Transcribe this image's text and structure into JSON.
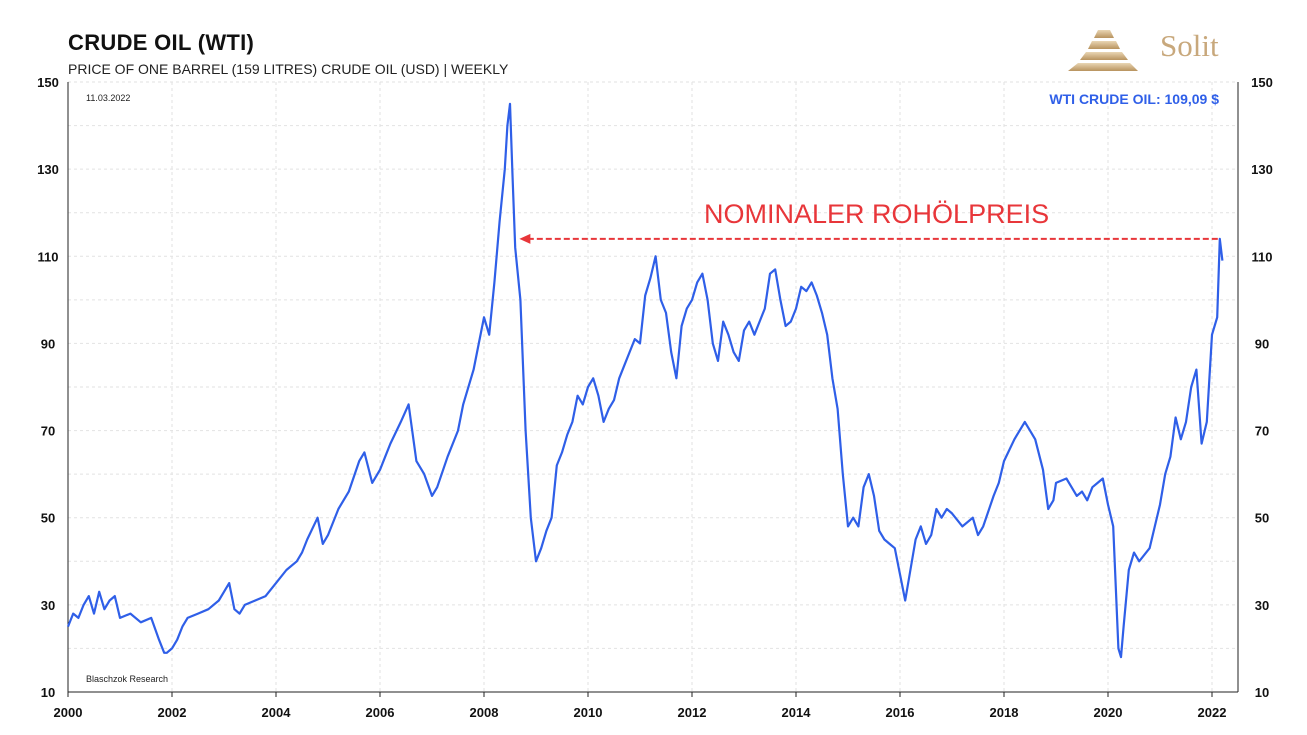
{
  "header": {
    "title": "CRUDE OIL (WTI)",
    "subtitle": "PRICE OF ONE BARREL (159 LITRES) CRUDE OIL (USD) | WEEKLY",
    "brand": "Solit"
  },
  "chart_data": {
    "type": "line",
    "title": "CRUDE OIL (WTI)",
    "subtitle": "PRICE OF ONE BARREL (159 LITRES) CRUDE OIL (USD) | WEEKLY",
    "date_label": "11.03.2022",
    "source_label": "Blaschzok Research",
    "current_value_label": "WTI CRUDE OIL: 109,09 $",
    "annotation": "NOMINALER ROHÖLPREIS",
    "annotation_level": 114,
    "xlim": [
      2000,
      2022.5
    ],
    "ylim": [
      10,
      150
    ],
    "x_ticks": [
      2000,
      2002,
      2004,
      2006,
      2008,
      2010,
      2012,
      2014,
      2016,
      2018,
      2020,
      2022
    ],
    "y_ticks": [
      10,
      30,
      50,
      70,
      90,
      110,
      130,
      150
    ],
    "grid": true,
    "line_color": "#2f5fe8",
    "annotation_color": "#e8363a",
    "series": [
      {
        "name": "WTI CRUDE OIL",
        "x": [
          2000.0,
          2000.1,
          2000.2,
          2000.3,
          2000.4,
          2000.5,
          2000.6,
          2000.7,
          2000.8,
          2000.9,
          2001.0,
          2001.2,
          2001.4,
          2001.6,
          2001.75,
          2001.85,
          2001.9,
          2002.0,
          2002.1,
          2002.2,
          2002.3,
          2002.5,
          2002.7,
          2002.9,
          2003.0,
          2003.1,
          2003.2,
          2003.3,
          2003.4,
          2003.6,
          2003.8,
          2004.0,
          2004.2,
          2004.4,
          2004.5,
          2004.6,
          2004.8,
          2004.9,
          2005.0,
          2005.2,
          2005.4,
          2005.6,
          2005.7,
          2005.85,
          2006.0,
          2006.2,
          2006.4,
          2006.55,
          2006.7,
          2006.85,
          2007.0,
          2007.1,
          2007.3,
          2007.5,
          2007.6,
          2007.8,
          2007.9,
          2008.0,
          2008.1,
          2008.2,
          2008.3,
          2008.4,
          2008.45,
          2008.5,
          2008.55,
          2008.6,
          2008.7,
          2008.8,
          2008.9,
          2009.0,
          2009.1,
          2009.2,
          2009.3,
          2009.4,
          2009.5,
          2009.6,
          2009.7,
          2009.8,
          2009.9,
          2010.0,
          2010.1,
          2010.2,
          2010.3,
          2010.4,
          2010.5,
          2010.6,
          2010.7,
          2010.8,
          2010.9,
          2011.0,
          2011.1,
          2011.2,
          2011.3,
          2011.4,
          2011.5,
          2011.6,
          2011.7,
          2011.8,
          2011.9,
          2012.0,
          2012.1,
          2012.2,
          2012.3,
          2012.4,
          2012.5,
          2012.6,
          2012.7,
          2012.8,
          2012.9,
          2013.0,
          2013.1,
          2013.2,
          2013.3,
          2013.4,
          2013.5,
          2013.6,
          2013.7,
          2013.8,
          2013.9,
          2014.0,
          2014.1,
          2014.2,
          2014.3,
          2014.4,
          2014.5,
          2014.6,
          2014.7,
          2014.8,
          2014.9,
          2015.0,
          2015.1,
          2015.2,
          2015.3,
          2015.4,
          2015.5,
          2015.6,
          2015.7,
          2015.8,
          2015.9,
          2016.0,
          2016.1,
          2016.2,
          2016.3,
          2016.4,
          2016.5,
          2016.6,
          2016.7,
          2016.8,
          2016.9,
          2017.0,
          2017.2,
          2017.4,
          2017.5,
          2017.6,
          2017.8,
          2017.9,
          2018.0,
          2018.2,
          2018.4,
          2018.5,
          2018.6,
          2018.75,
          2018.85,
          2018.95,
          2019.0,
          2019.2,
          2019.3,
          2019.4,
          2019.5,
          2019.6,
          2019.7,
          2019.8,
          2019.9,
          2020.0,
          2020.1,
          2020.2,
          2020.25,
          2020.3,
          2020.4,
          2020.5,
          2020.6,
          2020.8,
          2020.9,
          2021.0,
          2021.1,
          2021.2,
          2021.3,
          2021.4,
          2021.5,
          2021.6,
          2021.7,
          2021.8,
          2021.9,
          2022.0,
          2022.1,
          2022.15,
          2022.2
        ],
        "values": [
          25,
          28,
          27,
          30,
          32,
          28,
          33,
          29,
          31,
          32,
          27,
          28,
          26,
          27,
          22,
          19,
          19,
          20,
          22,
          25,
          27,
          28,
          29,
          31,
          33,
          35,
          29,
          28,
          30,
          31,
          32,
          35,
          38,
          40,
          42,
          45,
          50,
          44,
          46,
          52,
          56,
          63,
          65,
          58,
          61,
          67,
          72,
          76,
          63,
          60,
          55,
          57,
          64,
          70,
          76,
          84,
          90,
          96,
          92,
          104,
          118,
          130,
          140,
          145,
          128,
          112,
          100,
          70,
          50,
          40,
          43,
          47,
          50,
          62,
          65,
          69,
          72,
          78,
          76,
          80,
          82,
          78,
          72,
          75,
          77,
          82,
          85,
          88,
          91,
          90,
          101,
          105,
          110,
          100,
          97,
          88,
          82,
          94,
          98,
          100,
          104,
          106,
          100,
          90,
          86,
          95,
          92,
          88,
          86,
          93,
          95,
          92,
          95,
          98,
          106,
          107,
          100,
          94,
          95,
          98,
          103,
          102,
          104,
          101,
          97,
          92,
          82,
          75,
          60,
          48,
          50,
          48,
          57,
          60,
          55,
          47,
          45,
          44,
          43,
          37,
          31,
          38,
          45,
          48,
          44,
          46,
          52,
          50,
          52,
          51,
          48,
          50,
          46,
          48,
          55,
          58,
          63,
          68,
          72,
          70,
          68,
          61,
          52,
          54,
          58,
          59,
          57,
          55,
          56,
          54,
          57,
          58,
          59,
          53,
          48,
          20,
          18,
          25,
          38,
          42,
          40,
          43,
          48,
          53,
          60,
          64,
          73,
          68,
          72,
          80,
          84,
          67,
          72,
          92,
          96,
          114,
          109
        ]
      }
    ]
  }
}
